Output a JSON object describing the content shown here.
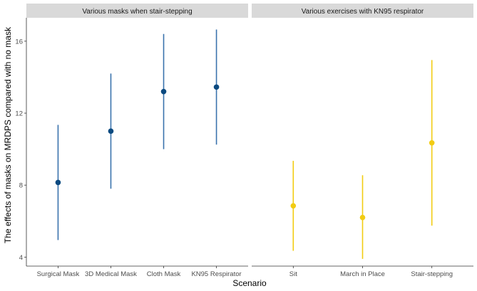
{
  "chart_data": {
    "type": "scatter",
    "subtype": "point-range",
    "xlabel": "Scenario",
    "ylabel": "The effects of masks on MRDPS compared with no mask",
    "ylim": [
      3.5,
      17.3
    ],
    "yticks": [
      4,
      8,
      12,
      16
    ],
    "grid": false,
    "panels": [
      {
        "title": "Various masks when stair-stepping",
        "color": "#0b4a80",
        "line_color": "#3a73ad",
        "categories": [
          "Surgical Mask",
          "3D Medical Mask",
          "Cloth Mask",
          "KN95 Respirator"
        ],
        "estimate": [
          8.15,
          11.0,
          13.2,
          13.45
        ],
        "lower": [
          4.95,
          7.8,
          10.0,
          10.25
        ],
        "upper": [
          11.35,
          14.2,
          16.4,
          16.65
        ]
      },
      {
        "title": "Various exercises with KN95 respirator",
        "color": "#f2cc13",
        "line_color": "#f2cc13",
        "categories": [
          "Sit",
          "March in Place",
          "Stair-stepping"
        ],
        "estimate": [
          6.85,
          6.2,
          10.35
        ],
        "lower": [
          4.35,
          3.9,
          5.75
        ],
        "upper": [
          9.35,
          8.55,
          14.95
        ]
      }
    ]
  }
}
